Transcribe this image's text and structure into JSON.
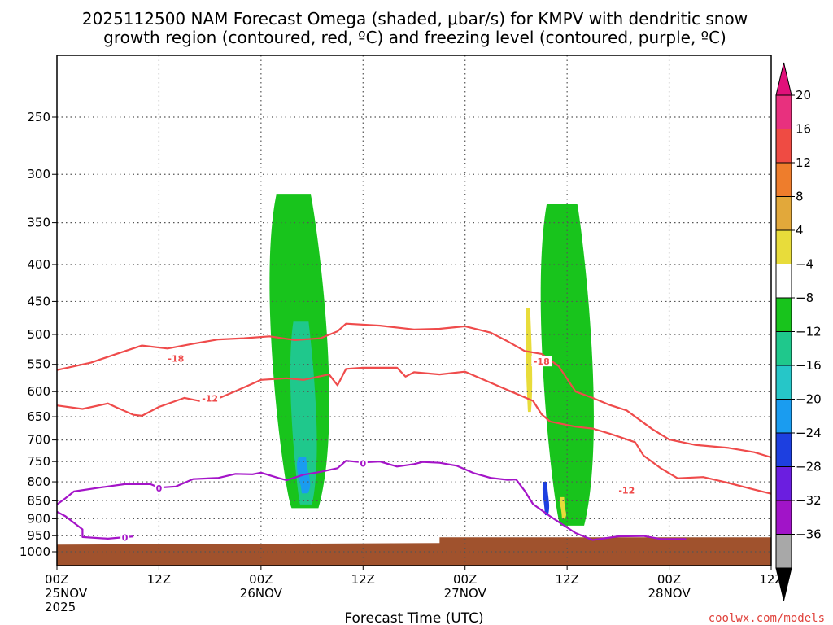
{
  "header": {
    "title_line1": "2025112500 NAM Forecast Omega (shaded, μbar/s) for KMPV with dendritic snow",
    "title_line2": "growth region (contoured, red, ºC) and freezing level (contoured, purple, ºC)"
  },
  "footer": {
    "credit": "coolwx.com/models"
  },
  "chart_data": {
    "type": "heatmap",
    "xlabel": "Forecast Time (UTC)",
    "ylabel": "",
    "x_range_hours": [
      0,
      84
    ],
    "y_scale": "log-pressure",
    "ylim": [
      1050,
      200
    ],
    "grid": true,
    "x_ticks": [
      {
        "hour": 0,
        "line1": "00Z",
        "line2": "25NOV",
        "line3": "2025"
      },
      {
        "hour": 12,
        "line1": "12Z",
        "line2": "",
        "line3": ""
      },
      {
        "hour": 24,
        "line1": "00Z",
        "line2": "26NOV",
        "line3": ""
      },
      {
        "hour": 36,
        "line1": "12Z",
        "line2": "",
        "line3": ""
      },
      {
        "hour": 48,
        "line1": "00Z",
        "line2": "27NOV",
        "line3": ""
      },
      {
        "hour": 60,
        "line1": "12Z",
        "line2": "",
        "line3": ""
      },
      {
        "hour": 72,
        "line1": "00Z",
        "line2": "28NOV",
        "line3": ""
      },
      {
        "hour": 84,
        "line1": "12Z",
        "line2": "",
        "line3": ""
      }
    ],
    "y_ticks": [
      250,
      300,
      350,
      400,
      450,
      500,
      550,
      600,
      650,
      700,
      750,
      800,
      850,
      900,
      950,
      1000
    ],
    "colorbar": {
      "labels": [
        "20",
        "16",
        "12",
        "8",
        "4",
        "−4",
        "−8",
        "−12",
        "−16",
        "−20",
        "−24",
        "−28",
        "−32",
        "−36"
      ],
      "colors": [
        "#e8307e",
        "#ef4b43",
        "#ee7d2c",
        "#e2a83a",
        "#e8dc3a",
        "#ffffff",
        "#18c41c",
        "#1fc88c",
        "#26c6c8",
        "#1a9cf0",
        "#1d3fe0",
        "#6b1ee0",
        "#a114c8",
        "#a8a8a8"
      ],
      "top_arrow_color": "#e0107a",
      "bottom_arrow_color": "#000000"
    },
    "series": [
      {
        "name": "-18",
        "color": "#ef4b4b",
        "points": [
          [
            0,
            560
          ],
          [
            4,
            547
          ],
          [
            7,
            532
          ],
          [
            10,
            518
          ],
          [
            13,
            523
          ],
          [
            16,
            515
          ],
          [
            19,
            508
          ],
          [
            22,
            506
          ],
          [
            25,
            503
          ],
          [
            28,
            509
          ],
          [
            31,
            506
          ],
          [
            33,
            495
          ],
          [
            34,
            483
          ],
          [
            38,
            486
          ],
          [
            42,
            492
          ],
          [
            45,
            491
          ],
          [
            48,
            487
          ],
          [
            51,
            497
          ],
          [
            53,
            511
          ],
          [
            55,
            527
          ],
          [
            57,
            532
          ],
          [
            59,
            553
          ],
          [
            61,
            600
          ],
          [
            63,
            612
          ],
          [
            65,
            626
          ],
          [
            67,
            637
          ],
          [
            70,
            676
          ],
          [
            72,
            699
          ],
          [
            75,
            711
          ],
          [
            79,
            718
          ],
          [
            82,
            728
          ],
          [
            84,
            740
          ]
        ]
      },
      {
        "name": "-12",
        "color": "#ef4b4b",
        "points": [
          [
            0,
            627
          ],
          [
            3,
            634
          ],
          [
            6,
            623
          ],
          [
            7,
            631
          ],
          [
            9,
            646
          ],
          [
            10,
            648
          ],
          [
            12,
            630
          ],
          [
            15,
            612
          ],
          [
            17,
            619
          ],
          [
            19,
            613
          ],
          [
            21,
            599
          ],
          [
            24,
            578
          ],
          [
            27,
            575
          ],
          [
            29,
            578
          ],
          [
            32,
            568
          ],
          [
            33,
            588
          ],
          [
            34,
            558
          ],
          [
            36,
            556
          ],
          [
            40,
            556
          ],
          [
            41,
            572
          ],
          [
            42,
            564
          ],
          [
            45,
            568
          ],
          [
            48,
            563
          ],
          [
            52,
            590
          ],
          [
            56,
            618
          ],
          [
            57,
            645
          ],
          [
            58,
            660
          ],
          [
            61,
            671
          ],
          [
            63,
            675
          ],
          [
            65,
            686
          ],
          [
            68,
            705
          ],
          [
            69,
            736
          ],
          [
            71,
            766
          ],
          [
            73,
            791
          ],
          [
            76,
            788
          ],
          [
            79,
            803
          ],
          [
            82,
            820
          ],
          [
            84,
            831
          ]
        ]
      },
      {
        "name": "0",
        "color": "#a414c8",
        "points": [
          [
            0,
            860
          ],
          [
            1,
            843
          ],
          [
            2,
            825
          ],
          [
            5,
            815
          ],
          [
            8,
            806
          ],
          [
            11,
            806
          ],
          [
            12,
            815
          ],
          [
            14,
            812
          ],
          [
            16,
            793
          ],
          [
            19,
            790
          ],
          [
            21,
            780
          ],
          [
            23,
            781
          ],
          [
            24,
            777
          ],
          [
            26,
            790
          ],
          [
            27,
            796
          ],
          [
            29,
            782
          ],
          [
            31,
            775
          ],
          [
            33,
            766
          ],
          [
            34,
            748
          ],
          [
            36,
            752
          ],
          [
            38,
            750
          ],
          [
            40,
            762
          ],
          [
            42,
            756
          ],
          [
            43,
            751
          ],
          [
            45,
            753
          ],
          [
            47,
            760
          ],
          [
            49,
            778
          ],
          [
            51,
            790
          ],
          [
            53,
            795
          ],
          [
            54,
            794
          ],
          [
            55,
            823
          ],
          [
            56,
            859
          ],
          [
            58,
            893
          ],
          [
            61,
            942
          ],
          [
            63,
            963
          ],
          [
            66,
            952
          ],
          [
            69,
            951
          ],
          [
            71,
            960
          ],
          [
            74,
            960
          ]
        ]
      },
      {
        "name": "0",
        "color": "#a414c8",
        "points": [
          [
            0,
            880
          ],
          [
            1,
            893
          ],
          [
            3,
            931
          ],
          [
            3,
            954
          ],
          [
            6,
            959
          ],
          [
            9,
            952
          ]
        ]
      }
    ],
    "curve_labels": [
      {
        "text": "-18",
        "color": "#ef4b4b",
        "hour": 14,
        "p": 540
      },
      {
        "text": "-12",
        "color": "#ef4b4b",
        "hour": 18,
        "p": 613
      },
      {
        "text": "-18",
        "color": "#ef4b4b",
        "hour": 57,
        "p": 545
      },
      {
        "text": "-12",
        "color": "#ef4b4b",
        "hour": 67,
        "p": 822
      },
      {
        "text": "0",
        "color": "#a414c8",
        "hour": 12,
        "p": 817
      },
      {
        "text": "0",
        "color": "#a414c8",
        "hour": 36,
        "p": 755
      },
      {
        "text": "0",
        "color": "#a414c8",
        "hour": 8,
        "p": 955
      }
    ],
    "omega_regions": [
      {
        "level": "-4 to -8",
        "color": "#18c41c",
        "hour_range": [
          24,
          33
        ],
        "p_range": [
          320,
          870
        ]
      },
      {
        "level": "-4 to -8",
        "color": "#18c41c",
        "hour_range": [
          56,
          64
        ],
        "p_range": [
          330,
          920
        ]
      },
      {
        "level": "-8 to -12",
        "color": "#1fc88c",
        "hour_range": [
          27,
          31
        ],
        "p_range": [
          480,
          860
        ]
      },
      {
        "level": "-12 to -20",
        "color": "#1a9cf0",
        "hour_range": [
          28,
          30
        ],
        "p_range": [
          740,
          830
        ]
      },
      {
        "level": "-20 to -24",
        "color": "#1d3fe0",
        "hour_range": [
          57,
          58
        ],
        "p_range": [
          800,
          890
        ]
      },
      {
        "level": "4 to 8",
        "color": "#e8dc3a",
        "hour_range": [
          55,
          56
        ],
        "p_range": [
          460,
          640
        ]
      },
      {
        "level": "4 to 8",
        "color": "#e8dc3a",
        "hour_range": [
          59,
          60
        ],
        "p_range": [
          840,
          900
        ]
      }
    ],
    "terrain": {
      "color": "#a0522d",
      "p_surface": 955
    }
  }
}
